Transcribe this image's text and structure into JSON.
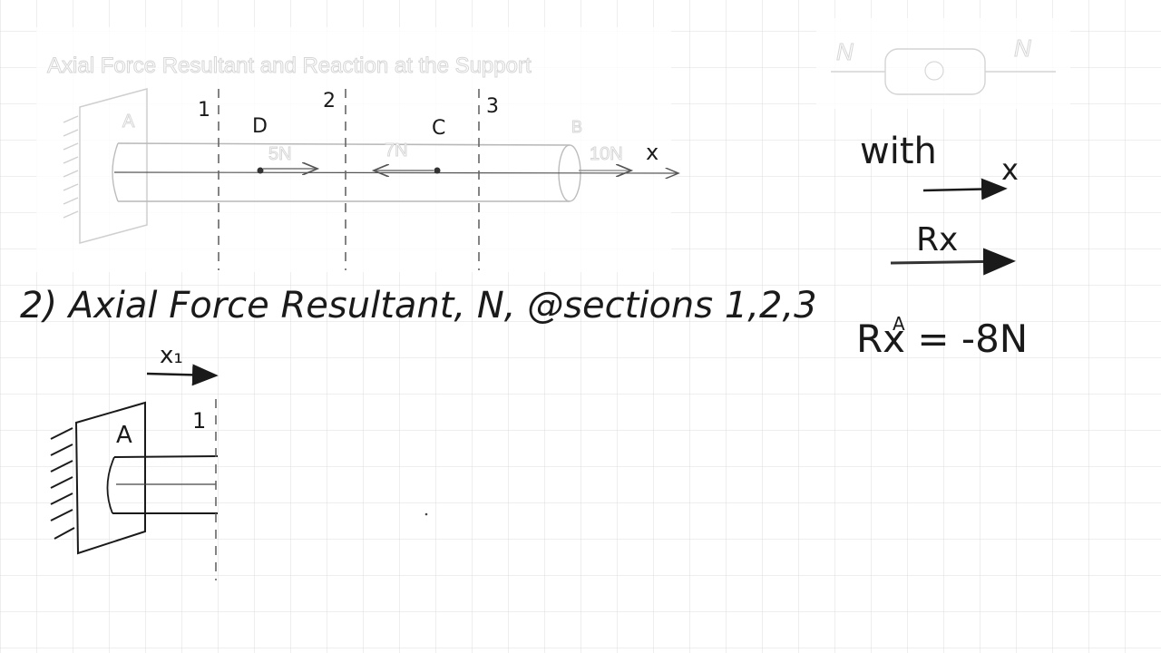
{
  "header_title": "Axial Force Resultant and Reaction at the Support",
  "top_diagram": {
    "section_labels": [
      "1",
      "2",
      "3"
    ],
    "point_labels": {
      "A": "A",
      "D": "D",
      "C": "C",
      "B": "B"
    },
    "force_labels": {
      "d": "5N",
      "c": "7N",
      "b": "10N"
    },
    "axis_label": "x"
  },
  "corner_sketch": {
    "left_label": "N",
    "right_label": "N"
  },
  "right_notes": {
    "with_text": "with",
    "x_label": "x",
    "rx_label": "Rx",
    "equation": "Rx   = -8N",
    "equation_sup": "A"
  },
  "step_heading": "2)  Axial Force Resultant, N, @sections 1,2,3",
  "bottom_diagram": {
    "x1_label": "x₁",
    "section_label": "1",
    "support_label": "A"
  },
  "colors": {
    "ink": "#1a1a1a",
    "grid": "#dcdcdc",
    "faint": "#d6d6d6"
  }
}
